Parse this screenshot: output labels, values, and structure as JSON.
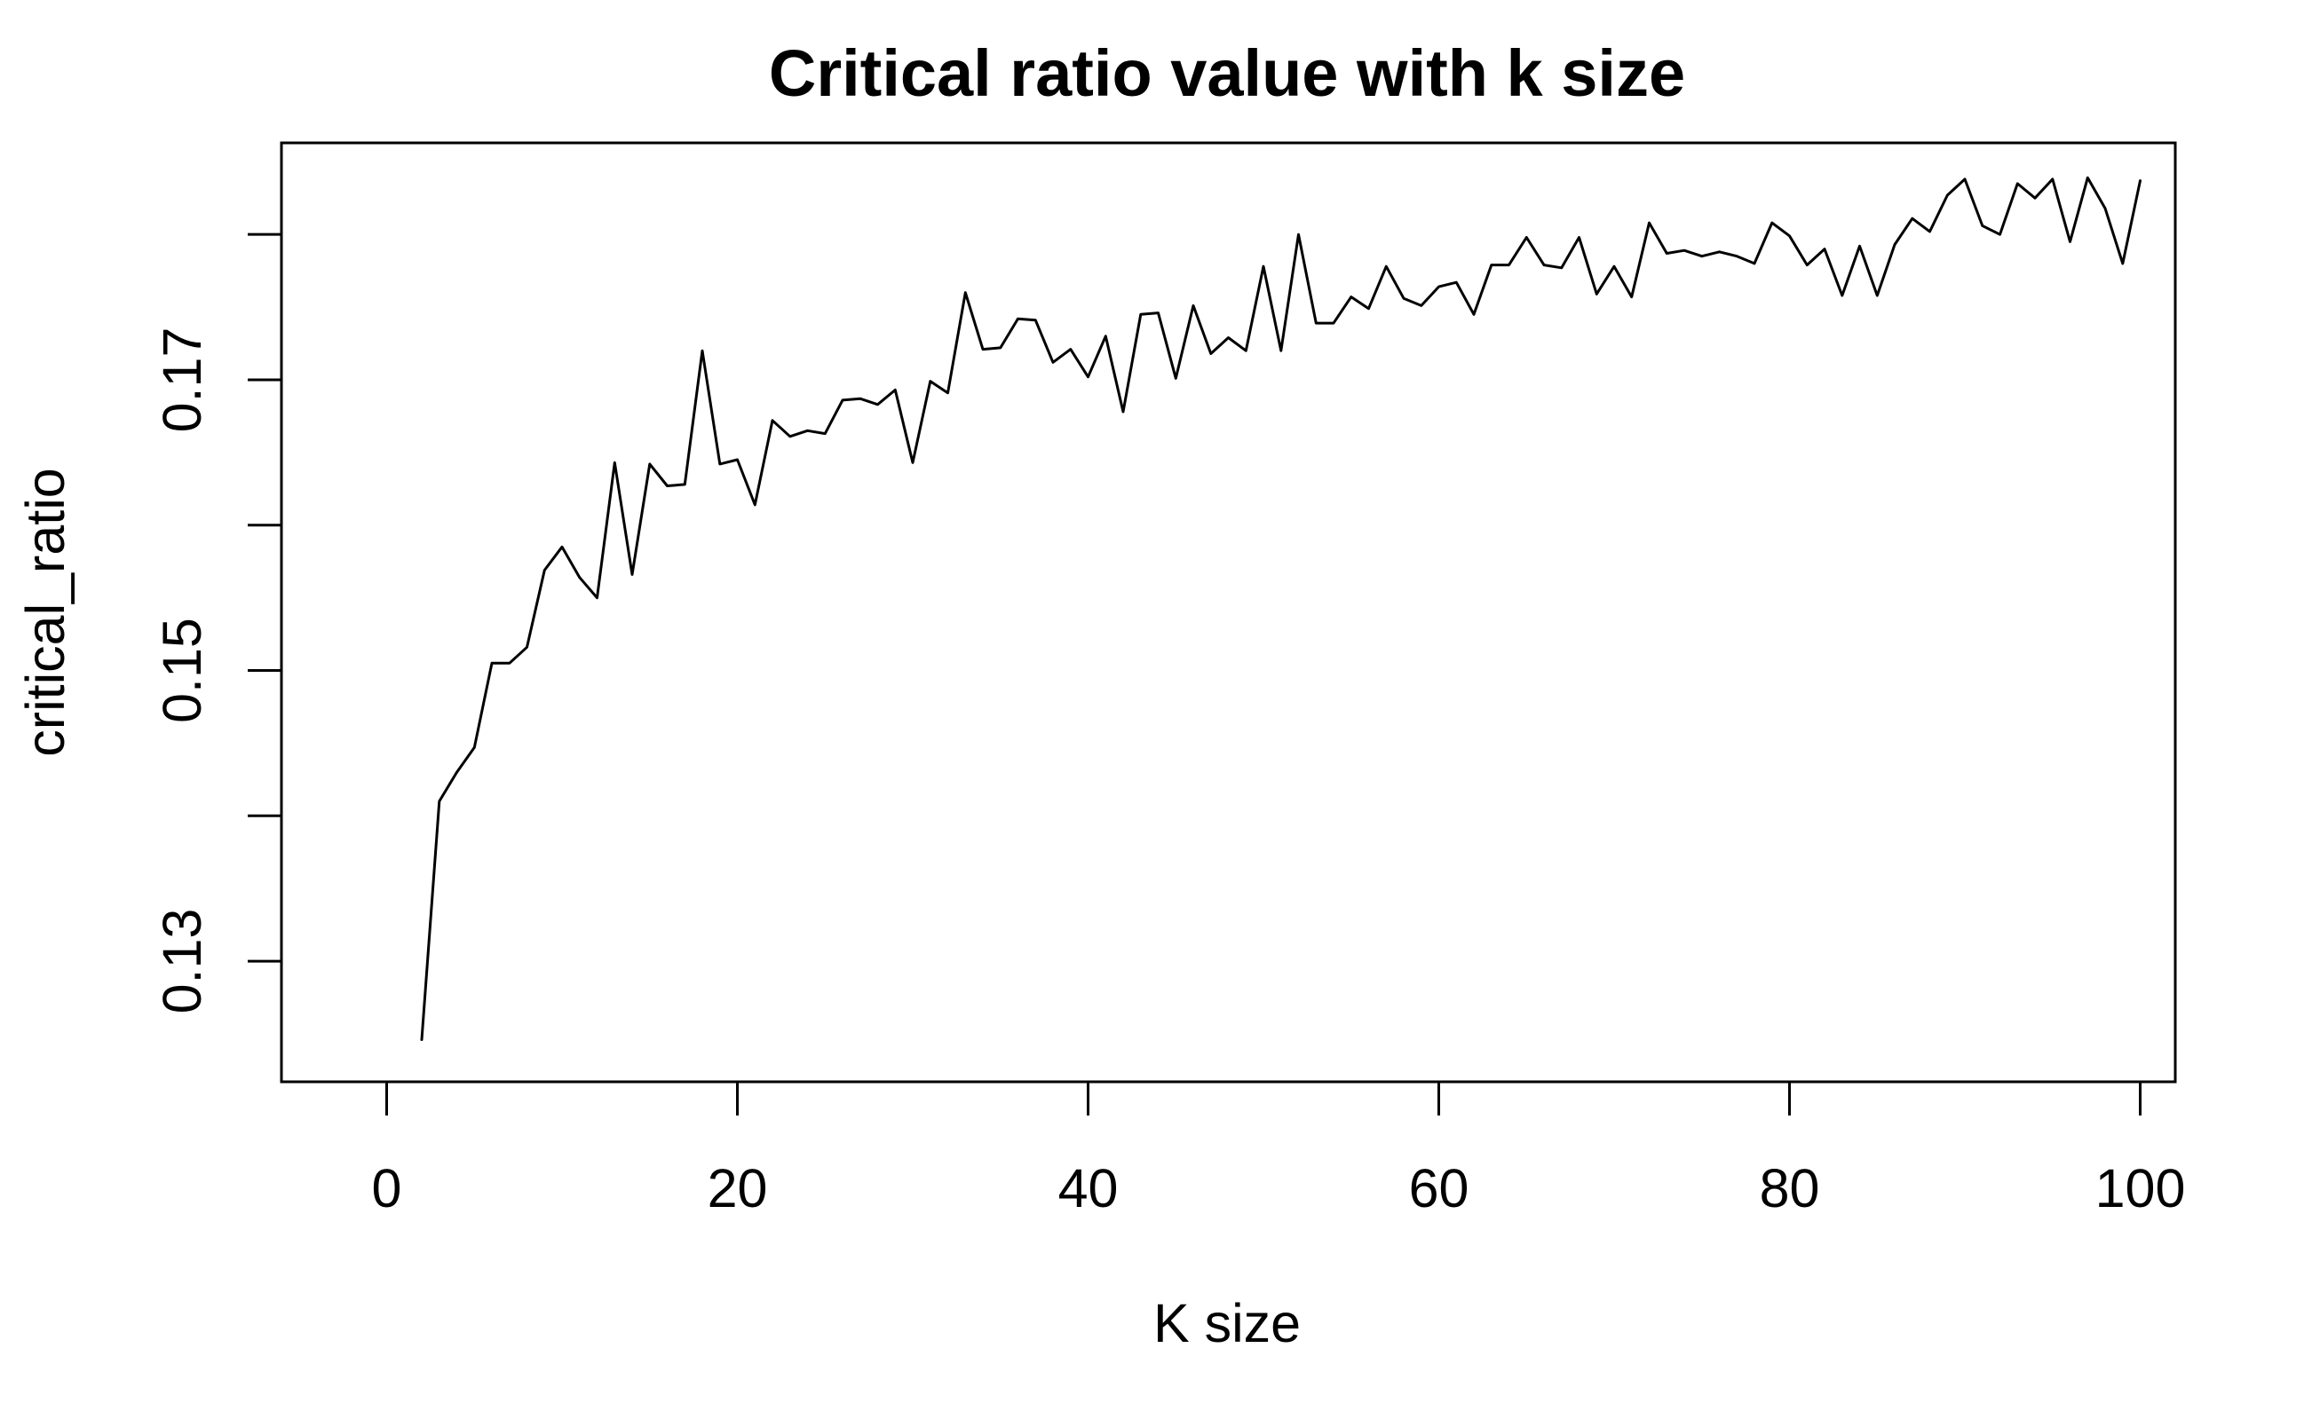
{
  "chart_data": {
    "type": "line",
    "title": "Critical ratio value with k size",
    "xlabel": "K size",
    "ylabel": "critical_ratio",
    "xlim": [
      -6,
      102
    ],
    "ylim": [
      0.1217,
      0.1863
    ],
    "x_ticks": [
      0,
      20,
      40,
      60,
      80,
      100
    ],
    "x_tick_labels": [
      "0",
      "20",
      "40",
      "60",
      "80",
      "100"
    ],
    "y_ticks": [
      0.13,
      0.14,
      0.15,
      0.16,
      0.17,
      0.18
    ],
    "y_tick_labels": [
      "0.13",
      "",
      "0.15",
      "",
      "0.17",
      ""
    ],
    "grid": false,
    "legend": "none",
    "series_color": "#000000",
    "series": [
      {
        "x": [
          2,
          3,
          4,
          5,
          6,
          7,
          8,
          9,
          10,
          11,
          12,
          13,
          14,
          15,
          16,
          17,
          18,
          19,
          20,
          21,
          22,
          23,
          24,
          25,
          26,
          27,
          28,
          29,
          30,
          31,
          32,
          33,
          34,
          35,
          36,
          37,
          38,
          39,
          40,
          41,
          42,
          43,
          44,
          45,
          46,
          47,
          48,
          49,
          50,
          51,
          52,
          53,
          54,
          55,
          56,
          57,
          58,
          59,
          60,
          61,
          62,
          63,
          64,
          65,
          66,
          67,
          68,
          69,
          70,
          71,
          72,
          73,
          74,
          75,
          76,
          77,
          78,
          79,
          80,
          81,
          82,
          83,
          84,
          85,
          86,
          87,
          88,
          89,
          90,
          91,
          92,
          93,
          94,
          95,
          96,
          97,
          98,
          99,
          100
        ],
        "values": [
          0.1246,
          0.141,
          0.143,
          0.1447,
          0.1505,
          0.1505,
          0.1516,
          0.1569,
          0.1585,
          0.1564,
          0.155,
          0.1643,
          0.1566,
          0.1642,
          0.1627,
          0.1628,
          0.172,
          0.1642,
          0.1645,
          0.1614,
          0.1672,
          0.1661,
          0.1665,
          0.1663,
          0.1686,
          0.1687,
          0.1683,
          0.1693,
          0.1643,
          0.1699,
          0.1691,
          0.176,
          0.1721,
          0.1722,
          0.1742,
          0.1741,
          0.1712,
          0.1721,
          0.1702,
          0.173,
          0.1678,
          0.1745,
          0.1746,
          0.1701,
          0.1751,
          0.1718,
          0.1729,
          0.172,
          0.1778,
          0.172,
          0.18,
          0.1739,
          0.1739,
          0.1757,
          0.1749,
          0.1778,
          0.1756,
          0.1751,
          0.1764,
          0.1767,
          0.1745,
          0.1779,
          0.1779,
          0.1798,
          0.1779,
          0.1777,
          0.1798,
          0.1759,
          0.1778,
          0.1757,
          0.1808,
          0.1787,
          0.1789,
          0.1785,
          0.1788,
          0.1785,
          0.178,
          0.1808,
          0.1799,
          0.1779,
          0.179,
          0.1758,
          0.1792,
          0.1758,
          0.1793,
          0.1811,
          0.1802,
          0.1827,
          0.1838,
          0.1806,
          0.18,
          0.1835,
          0.1825,
          0.1838,
          0.1795,
          0.1839,
          0.1818,
          0.178,
          0.1837
        ]
      }
    ]
  }
}
